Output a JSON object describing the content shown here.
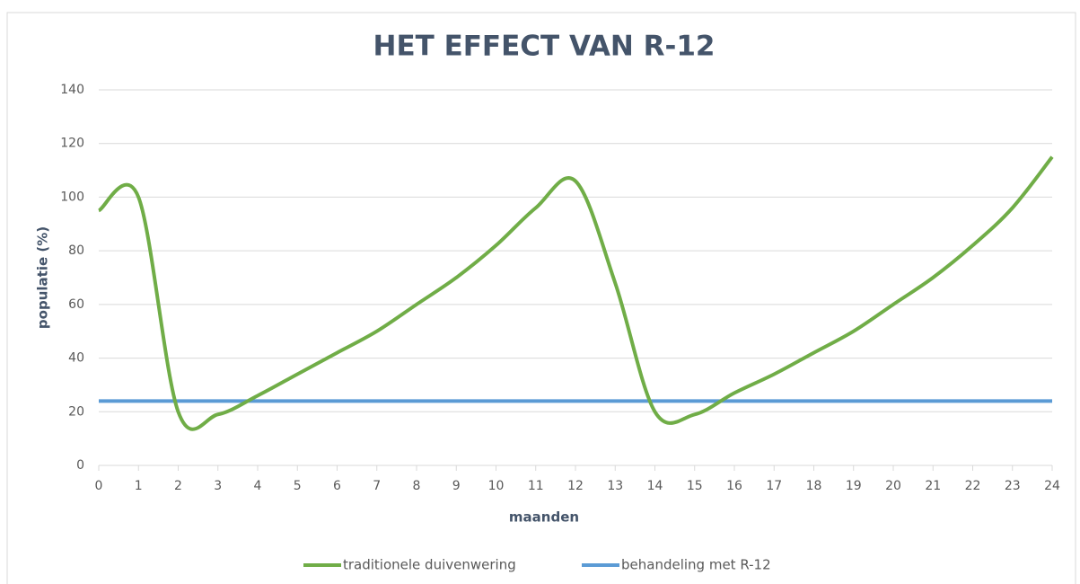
{
  "chart_data": {
    "type": "line",
    "title": "HET EFFECT VAN R-12",
    "x_label": "maanden",
    "y_label": "populatie (%)",
    "x": [
      0,
      1,
      2,
      3,
      4,
      5,
      6,
      7,
      8,
      9,
      10,
      11,
      12,
      13,
      14,
      15,
      16,
      17,
      18,
      19,
      20,
      21,
      22,
      23,
      24
    ],
    "series": [
      {
        "name": "traditionele duivenwering",
        "color": "#70ad47",
        "values": [
          95,
          100,
          20,
          19,
          26,
          34,
          42,
          50,
          60,
          70,
          82,
          96,
          106,
          68,
          20,
          19,
          27,
          34,
          42,
          50,
          60,
          70,
          82,
          96,
          115
        ]
      },
      {
        "name": "behandeling met R-12",
        "color": "#5b9bd5",
        "values": [
          24,
          24,
          24,
          24,
          24,
          24,
          24,
          24,
          24,
          24,
          24,
          24,
          24,
          24,
          24,
          24,
          24,
          24,
          24,
          24,
          24,
          24,
          24,
          24,
          24
        ]
      }
    ],
    "xlim": [
      0,
      24
    ],
    "xticks": [
      0,
      1,
      2,
      3,
      4,
      5,
      6,
      7,
      8,
      9,
      10,
      11,
      12,
      13,
      14,
      15,
      16,
      17,
      18,
      19,
      20,
      21,
      22,
      23,
      24
    ],
    "ylim": [
      0,
      140
    ],
    "yticks": [
      0,
      20,
      40,
      60,
      80,
      100,
      120,
      140
    ],
    "grid": true,
    "legend": "bottom",
    "smooth": true
  }
}
